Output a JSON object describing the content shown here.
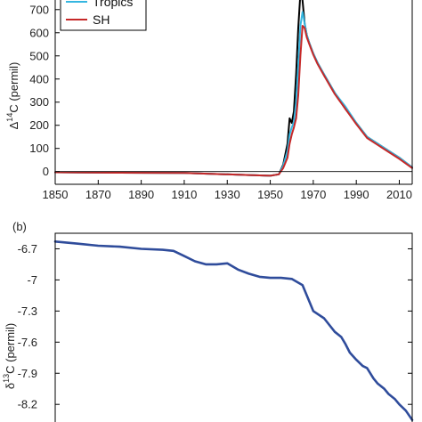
{
  "chart_data": [
    {
      "type": "line",
      "panel_label": "",
      "ylabel": "Δ<sup>14</sup>C (permil)",
      "ylabel_parts": {
        "pre": "Δ",
        "sup": "14",
        "post": "C  (permil)"
      },
      "xlabel": "",
      "xlim": [
        1850,
        2016
      ],
      "ylim": [
        -55,
        780
      ],
      "x_ticks": [
        1850,
        1870,
        1890,
        1910,
        1930,
        1950,
        1970,
        1990,
        2010
      ],
      "y_ticks": [
        0,
        100,
        200,
        300,
        400,
        500,
        600,
        700
      ],
      "zero_line": true,
      "legend": {
        "placement": "top-left",
        "entries": [
          "Tropics",
          "SH"
        ]
      },
      "series": [
        {
          "name": "",
          "color": "#000000",
          "x": [
            1850,
            1880,
            1910,
            1940,
            1950,
            1954,
            1956,
            1958,
            1959,
            1960,
            1961,
            1962,
            1963,
            1964,
            1965,
            1966,
            1967,
            1968,
            1970,
            1972,
            1975,
            1980,
            1985,
            1990,
            1995,
            2000,
            2005,
            2010,
            2016
          ],
          "y": [
            -3,
            -5,
            -6,
            -15,
            -18,
            -12,
            30,
            120,
            230,
            210,
            260,
            420,
            620,
            770,
            740,
            640,
            590,
            560,
            510,
            470,
            420,
            340,
            270,
            210,
            150,
            120,
            90,
            60,
            18
          ]
        },
        {
          "name": "Tropics",
          "color": "#35b6e0",
          "x": [
            1850,
            1880,
            1910,
            1940,
            1950,
            1954,
            1956,
            1958,
            1959,
            1960,
            1961,
            1962,
            1963,
            1964,
            1965,
            1966,
            1967,
            1968,
            1970,
            1972,
            1975,
            1980,
            1985,
            1990,
            1995,
            2000,
            2005,
            2010,
            2016
          ],
          "y": [
            -3,
            -5,
            -6,
            -15,
            -18,
            -12,
            25,
            90,
            160,
            190,
            215,
            300,
            460,
            630,
            690,
            640,
            590,
            560,
            510,
            470,
            420,
            340,
            280,
            210,
            150,
            120,
            90,
            60,
            18
          ]
        },
        {
          "name": "SH",
          "color": "#c62828",
          "x": [
            1850,
            1880,
            1910,
            1940,
            1950,
            1954,
            1956,
            1958,
            1959,
            1960,
            1961,
            1962,
            1963,
            1964,
            1965,
            1966,
            1967,
            1968,
            1970,
            1972,
            1975,
            1980,
            1985,
            1990,
            1995,
            2000,
            2005,
            2010,
            2016
          ],
          "y": [
            -3,
            -5,
            -6,
            -15,
            -18,
            -12,
            15,
            60,
            120,
            160,
            190,
            230,
            330,
            500,
            630,
            620,
            580,
            555,
            505,
            465,
            415,
            335,
            270,
            205,
            145,
            115,
            85,
            55,
            15
          ]
        }
      ]
    },
    {
      "type": "line",
      "panel_label": "(b)",
      "ylabel": "δ<sup>13</sup>C (permil)",
      "ylabel_parts": {
        "pre": "δ",
        "sup": "13",
        "post": "C  (permil)"
      },
      "xlabel": "",
      "xlim": [
        1850,
        2016
      ],
      "ylim": [
        -8.37,
        -6.55
      ],
      "y_ticks": [
        -6.7,
        -7,
        -7.3,
        -7.6,
        -7.9,
        -8.2
      ],
      "y_tick_labels": [
        "-6.7",
        "-7",
        "-7.3",
        "-7.6",
        "-7.9",
        "-8.2"
      ],
      "series": [
        {
          "name": "",
          "color": "#2f4c9b",
          "x": [
            1850,
            1860,
            1870,
            1880,
            1890,
            1900,
            1905,
            1910,
            1915,
            1920,
            1925,
            1930,
            1935,
            1940,
            1945,
            1950,
            1955,
            1960,
            1965,
            1970,
            1975,
            1980,
            1983,
            1985,
            1987,
            1990,
            1993,
            1995,
            1998,
            2000,
            2003,
            2005,
            2008,
            2010,
            2013,
            2016
          ],
          "y": [
            -6.63,
            -6.65,
            -6.67,
            -6.68,
            -6.7,
            -6.71,
            -6.72,
            -6.77,
            -6.82,
            -6.85,
            -6.85,
            -6.84,
            -6.9,
            -6.94,
            -6.97,
            -6.98,
            -6.98,
            -6.99,
            -7.05,
            -7.3,
            -7.37,
            -7.5,
            -7.55,
            -7.62,
            -7.7,
            -7.77,
            -7.83,
            -7.85,
            -7.95,
            -8.0,
            -8.05,
            -8.1,
            -8.15,
            -8.2,
            -8.26,
            -8.35
          ]
        }
      ]
    }
  ]
}
